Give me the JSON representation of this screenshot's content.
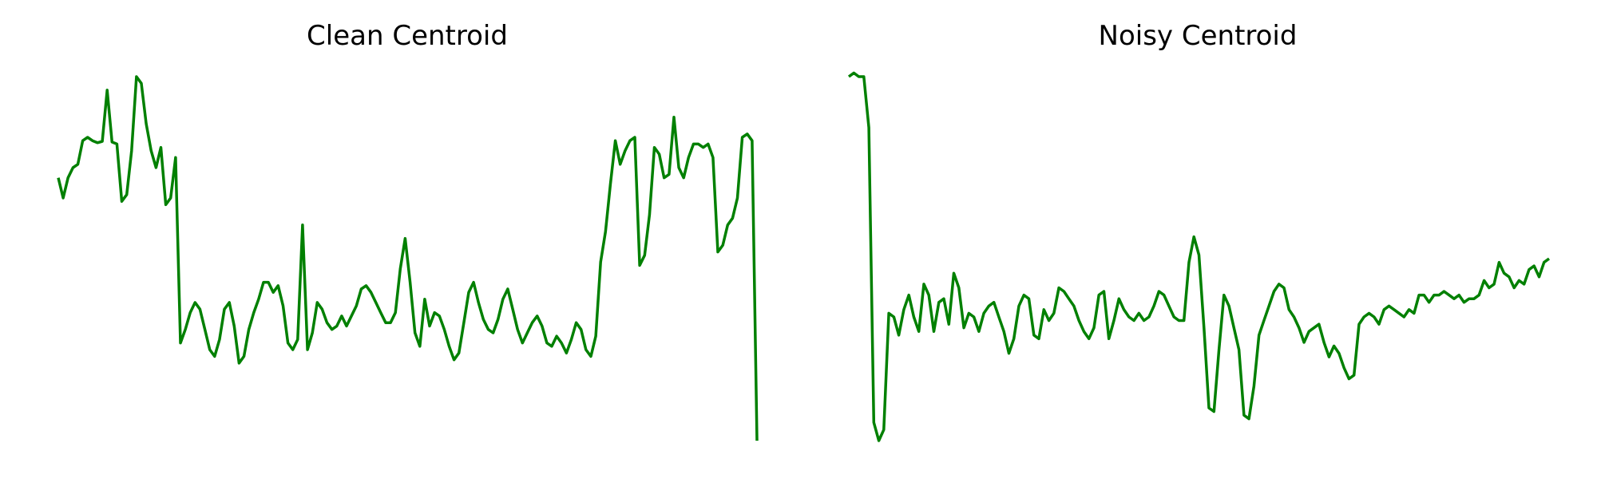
{
  "chart_data": [
    {
      "type": "line",
      "title": "Clean Centroid",
      "xlabel": "",
      "ylabel": "",
      "axes_visible": false,
      "grid": false,
      "legend": "none",
      "color": "#008000",
      "xlim": [
        0,
        135
      ],
      "ylim": [
        -3.2,
        2.2
      ],
      "series": [
        {
          "values": [
            0.7,
            0.4,
            0.7,
            0.85,
            0.9,
            1.25,
            1.3,
            1.25,
            1.22,
            1.24,
            2.0,
            1.23,
            1.2,
            0.35,
            0.45,
            1.1,
            2.2,
            2.1,
            1.5,
            1.1,
            0.85,
            1.15,
            0.3,
            0.4,
            1.0,
            -1.75,
            -1.55,
            -1.3,
            -1.15,
            -1.25,
            -1.55,
            -1.85,
            -1.95,
            -1.7,
            -1.25,
            -1.15,
            -1.5,
            -2.05,
            -1.95,
            -1.55,
            -1.3,
            -1.1,
            -0.85,
            -0.85,
            -1.0,
            -0.9,
            -1.2,
            -1.75,
            -1.85,
            -1.7,
            0.0,
            -1.85,
            -1.6,
            -1.15,
            -1.25,
            -1.45,
            -1.55,
            -1.5,
            -1.35,
            -1.5,
            -1.35,
            -1.2,
            -0.95,
            -0.9,
            -1.0,
            -1.15,
            -1.3,
            -1.45,
            -1.45,
            -1.3,
            -0.65,
            -0.2,
            -0.85,
            -1.6,
            -1.8,
            -1.1,
            -1.5,
            -1.3,
            -1.35,
            -1.55,
            -1.8,
            -2.0,
            -1.9,
            -1.45,
            -1.0,
            -0.85,
            -1.15,
            -1.4,
            -1.55,
            -1.6,
            -1.4,
            -1.1,
            -0.95,
            -1.25,
            -1.55,
            -1.75,
            -1.6,
            -1.45,
            -1.35,
            -1.5,
            -1.75,
            -1.8,
            -1.65,
            -1.75,
            -1.9,
            -1.7,
            -1.45,
            -1.55,
            -1.85,
            -1.95,
            -1.65,
            -0.55,
            -0.1,
            0.6,
            1.25,
            0.9,
            1.1,
            1.25,
            1.3,
            -0.6,
            -0.45,
            0.15,
            1.15,
            1.05,
            0.7,
            0.75,
            1.6,
            0.85,
            0.7,
            1.0,
            1.2,
            1.2,
            1.15,
            1.2,
            1.0,
            -0.4,
            -0.3,
            0.0,
            0.1,
            0.4,
            1.3,
            1.35,
            1.25,
            -3.2
          ]
        }
      ]
    },
    {
      "type": "line",
      "title": "Noisy Centroid",
      "xlabel": "",
      "ylabel": "",
      "axes_visible": false,
      "grid": false,
      "legend": "none",
      "color": "#008000",
      "xlim": [
        0,
        140
      ],
      "ylim": [
        -3.0,
        2.0
      ],
      "series": [
        {
          "values": [
            2.0,
            2.05,
            2.0,
            2.0,
            1.3,
            -2.75,
            -3.0,
            -2.85,
            -1.25,
            -1.3,
            -1.55,
            -1.2,
            -1.0,
            -1.3,
            -1.5,
            -0.85,
            -1.0,
            -1.5,
            -1.1,
            -1.05,
            -1.4,
            -0.7,
            -0.9,
            -1.45,
            -1.25,
            -1.3,
            -1.5,
            -1.25,
            -1.15,
            -1.1,
            -1.3,
            -1.5,
            -1.8,
            -1.6,
            -1.15,
            -1.0,
            -1.05,
            -1.55,
            -1.6,
            -1.2,
            -1.35,
            -1.25,
            -0.9,
            -0.95,
            -1.05,
            -1.15,
            -1.35,
            -1.5,
            -1.6,
            -1.45,
            -1.0,
            -0.95,
            -1.6,
            -1.35,
            -1.05,
            -1.2,
            -1.3,
            -1.35,
            -1.25,
            -1.35,
            -1.3,
            -1.15,
            -0.95,
            -1.0,
            -1.15,
            -1.3,
            -1.35,
            -1.35,
            -0.55,
            -0.2,
            -0.45,
            -1.45,
            -2.55,
            -2.6,
            -1.75,
            -1.0,
            -1.15,
            -1.45,
            -1.75,
            -2.65,
            -2.7,
            -2.25,
            -1.55,
            -1.35,
            -1.15,
            -0.95,
            -0.85,
            -0.9,
            -1.2,
            -1.3,
            -1.45,
            -1.65,
            -1.5,
            -1.45,
            -1.4,
            -1.65,
            -1.85,
            -1.7,
            -1.8,
            -2.0,
            -2.15,
            -2.1,
            -1.4,
            -1.3,
            -1.25,
            -1.3,
            -1.4,
            -1.2,
            -1.15,
            -1.2,
            -1.25,
            -1.3,
            -1.2,
            -1.25,
            -1.0,
            -1.0,
            -1.1,
            -1.0,
            -1.0,
            -0.95,
            -1.0,
            -1.05,
            -1.0,
            -1.1,
            -1.05,
            -1.05,
            -1.0,
            -0.8,
            -0.9,
            -0.85,
            -0.55,
            -0.7,
            -0.75,
            -0.9,
            -0.8,
            -0.85,
            -0.65,
            -0.6,
            -0.75,
            -0.55,
            -0.5
          ]
        }
      ]
    }
  ]
}
